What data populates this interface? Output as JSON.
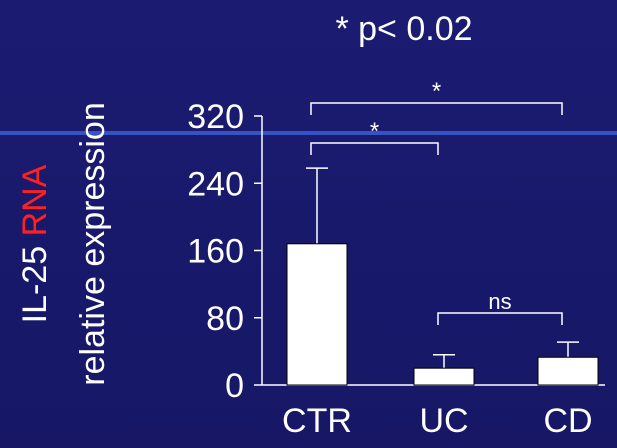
{
  "colors": {
    "background": "#1a1a6e",
    "foreground": "#ffffff",
    "accent_red": "#ff2020",
    "rule_blue": "#3a5fd6"
  },
  "chart_data": {
    "type": "bar",
    "title": "* p< 0.02",
    "ylabel_line1_prefix": "IL-25 ",
    "ylabel_line1_highlight": "RNA",
    "ylabel_line2": "relative expression",
    "categories": [
      "CTR",
      "UC",
      "CD"
    ],
    "values": [
      168,
      20,
      33
    ],
    "error_upper": [
      258,
      36,
      51
    ],
    "ylim": [
      0,
      320
    ],
    "yticks": [
      0,
      80,
      160,
      240,
      320
    ],
    "ytick_labels": [
      "0",
      "80",
      "160",
      "240",
      "320"
    ],
    "bar_color": "#ffffff",
    "significance": [
      {
        "from": 0,
        "to": 2,
        "label": "*"
      },
      {
        "from": 0,
        "to": 1,
        "label": "*"
      },
      {
        "from": 1,
        "to": 2,
        "label": "ns"
      }
    ],
    "grid": false,
    "legend": "none"
  }
}
